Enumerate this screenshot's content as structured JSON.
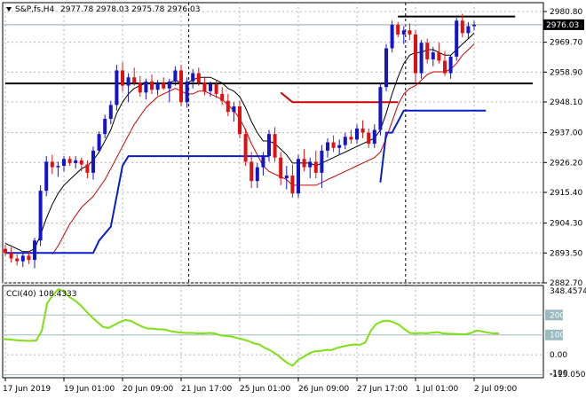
{
  "header": {
    "symbol": "S&P,fs,H4",
    "ohlc": "2977.78 2978.03 2975.78 2976.03"
  },
  "colors": {
    "up": "#1414c8",
    "down": "#e01010",
    "ma_fast": "#000000",
    "ma_slow": "#d00000",
    "stop_blue": "#0a1ec8",
    "stop_red": "#d00000",
    "cci": "#7fe016",
    "level": "#000000",
    "grid": "#b4b4b4",
    "current_price_label": "#000000",
    "cci_ref": "#9bbbc0"
  },
  "chart_data": [
    {
      "type": "candlestick",
      "title": "S&P,fs,H4",
      "x_labels": [
        "17 Jun 2019",
        "19 Jun 01:00",
        "20 Jun 09:00",
        "21 Jun 17:00",
        "25 Jun 01:00",
        "26 Jun 09:00",
        "27 Jun 17:00",
        "1 Jul 01:00",
        "2 Jul 09:00"
      ],
      "x_label_index": [
        0,
        10,
        20,
        30,
        40,
        50,
        60,
        70,
        80
      ],
      "y_ticks": [
        2980.8,
        2969.7,
        2958.9,
        2948.1,
        2937.0,
        2926.2,
        2915.4,
        2904.3,
        2893.5,
        2882.7
      ],
      "ylim": [
        2882.7,
        2984.0
      ],
      "current_price": 2976.03,
      "current_price_label": "2976.03",
      "levels": [
        {
          "price": 2954.8,
          "from": 0,
          "to": 90
        },
        {
          "price": 2979.0,
          "from": 67,
          "to": 87
        }
      ],
      "candles": [
        [
          2895.0,
          2896.5,
          2892.5,
          2893.5
        ],
        [
          2893.5,
          2895.5,
          2890.0,
          2891.5
        ],
        [
          2891.5,
          2893.0,
          2889.0,
          2890.5
        ],
        [
          2890.5,
          2893.5,
          2888.5,
          2892.5
        ],
        [
          2892.5,
          2894.0,
          2889.5,
          2891.0
        ],
        [
          2891.0,
          2899.0,
          2888.0,
          2898.0
        ],
        [
          2898.0,
          2918.0,
          2896.0,
          2916.0
        ],
        [
          2916.0,
          2928.5,
          2914.0,
          2926.5
        ],
        [
          2926.5,
          2929.0,
          2922.0,
          2924.5
        ],
        [
          2924.5,
          2926.5,
          2921.0,
          2925.0
        ],
        [
          2925.0,
          2928.5,
          2923.0,
          2927.5
        ],
        [
          2927.5,
          2928.5,
          2925.0,
          2926.0
        ],
        [
          2926.0,
          2928.5,
          2924.0,
          2927.0
        ],
        [
          2927.0,
          2928.0,
          2923.0,
          2925.5
        ],
        [
          2925.5,
          2927.0,
          2920.5,
          2922.5
        ],
        [
          2922.5,
          2932.0,
          2920.0,
          2930.5
        ],
        [
          2930.5,
          2937.5,
          2929.5,
          2936.5
        ],
        [
          2936.5,
          2943.5,
          2935.0,
          2942.0
        ],
        [
          2942.0,
          2948.5,
          2940.0,
          2947.0
        ],
        [
          2947.0,
          2961.5,
          2945.0,
          2959.5
        ],
        [
          2959.5,
          2962.5,
          2952.0,
          2954.0
        ],
        [
          2954.0,
          2958.5,
          2948.0,
          2957.0
        ],
        [
          2957.0,
          2960.5,
          2954.0,
          2955.0
        ],
        [
          2955.0,
          2957.5,
          2950.0,
          2951.5
        ],
        [
          2951.5,
          2956.5,
          2949.0,
          2955.5
        ],
        [
          2955.5,
          2958.0,
          2951.0,
          2952.5
        ],
        [
          2952.5,
          2956.0,
          2950.5,
          2955.0
        ],
        [
          2955.0,
          2957.0,
          2952.5,
          2953.0
        ],
        [
          2953.0,
          2956.5,
          2948.0,
          2955.5
        ],
        [
          2955.5,
          2961.0,
          2954.0,
          2959.5
        ],
        [
          2959.5,
          2961.5,
          2946.5,
          2948.0
        ],
        [
          2948.0,
          2957.0,
          2946.0,
          2955.5
        ],
        [
          2955.5,
          2960.0,
          2953.0,
          2958.5
        ],
        [
          2958.5,
          2960.5,
          2954.0,
          2955.0
        ],
        [
          2955.0,
          2957.0,
          2950.5,
          2952.0
        ],
        [
          2952.0,
          2955.5,
          2950.0,
          2954.5
        ],
        [
          2954.5,
          2956.0,
          2949.5,
          2951.0
        ],
        [
          2951.0,
          2953.5,
          2947.0,
          2948.5
        ],
        [
          2948.5,
          2951.0,
          2943.0,
          2944.5
        ],
        [
          2944.5,
          2948.0,
          2941.0,
          2946.5
        ],
        [
          2946.5,
          2948.5,
          2935.0,
          2936.5
        ],
        [
          2936.5,
          2938.5,
          2925.0,
          2926.5
        ],
        [
          2926.5,
          2930.0,
          2917.0,
          2919.5
        ],
        [
          2919.5,
          2926.0,
          2917.0,
          2924.5
        ],
        [
          2924.5,
          2930.0,
          2921.5,
          2928.5
        ],
        [
          2928.5,
          2938.0,
          2926.5,
          2936.5
        ],
        [
          2936.5,
          2939.0,
          2926.5,
          2928.0
        ],
        [
          2928.0,
          2930.0,
          2918.0,
          2920.5
        ],
        [
          2920.5,
          2925.0,
          2916.5,
          2921.5
        ],
        [
          2921.5,
          2925.5,
          2913.5,
          2915.0
        ],
        [
          2915.0,
          2929.0,
          2913.5,
          2927.5
        ],
        [
          2927.5,
          2931.0,
          2923.0,
          2924.5
        ],
        [
          2924.5,
          2928.0,
          2920.5,
          2926.5
        ],
        [
          2926.5,
          2930.5,
          2920.5,
          2922.5
        ],
        [
          2922.5,
          2932.5,
          2917.0,
          2930.5
        ],
        [
          2930.5,
          2935.0,
          2928.0,
          2933.5
        ],
        [
          2933.5,
          2936.0,
          2930.0,
          2931.5
        ],
        [
          2931.5,
          2934.5,
          2929.0,
          2932.5
        ],
        [
          2932.5,
          2937.0,
          2931.0,
          2935.5
        ],
        [
          2935.5,
          2938.0,
          2933.0,
          2934.5
        ],
        [
          2934.5,
          2940.0,
          2933.0,
          2938.5
        ],
        [
          2938.5,
          2941.5,
          2935.0,
          2937.0
        ],
        [
          2937.0,
          2938.5,
          2931.5,
          2933.0
        ],
        [
          2933.0,
          2940.0,
          2931.5,
          2938.0
        ],
        [
          2938.0,
          2955.0,
          2936.0,
          2953.5
        ],
        [
          2953.5,
          2969.0,
          2952.0,
          2967.5
        ],
        [
          2967.5,
          2977.5,
          2966.0,
          2976.0
        ],
        [
          2976.0,
          2977.0,
          2971.5,
          2972.5
        ],
        [
          2972.5,
          2975.5,
          2969.0,
          2974.0
        ],
        [
          2974.0,
          2976.5,
          2970.5,
          2972.5
        ],
        [
          2972.5,
          2974.0,
          2955.0,
          2958.5
        ],
        [
          2958.5,
          2970.5,
          2956.5,
          2969.5
        ],
        [
          2969.5,
          2971.0,
          2962.0,
          2963.5
        ],
        [
          2963.5,
          2968.0,
          2961.0,
          2966.0
        ],
        [
          2966.0,
          2969.5,
          2962.0,
          2963.0
        ],
        [
          2963.0,
          2966.5,
          2957.5,
          2958.5
        ],
        [
          2958.5,
          2965.0,
          2956.5,
          2964.5
        ],
        [
          2964.5,
          2978.5,
          2963.0,
          2977.5
        ],
        [
          2977.5,
          2980.0,
          2971.5,
          2973.0
        ],
        [
          2973.0,
          2977.0,
          2971.0,
          2975.5
        ],
        [
          2975.5,
          2977.5,
          2974.0,
          2976.0
        ]
      ],
      "overlays": {
        "ma_fast": [
          2897,
          2896,
          2895,
          2894,
          2894,
          2895,
          2900,
          2906,
          2911,
          2915,
          2918,
          2920,
          2922,
          2924,
          2925,
          2927,
          2930,
          2934,
          2938,
          2944,
          2948,
          2951,
          2953,
          2954,
          2955,
          2955,
          2955,
          2955,
          2955,
          2956,
          2955,
          2955,
          2956,
          2957,
          2957,
          2957,
          2956,
          2955,
          2953,
          2952,
          2950,
          2946,
          2941,
          2937,
          2934,
          2934,
          2933,
          2931,
          2929,
          2926,
          2926,
          2926,
          2926,
          2925,
          2926,
          2927,
          2928,
          2929,
          2930,
          2931,
          2932,
          2933,
          2934,
          2935,
          2938,
          2944,
          2951,
          2957,
          2962,
          2965,
          2966,
          2966,
          2967,
          2967,
          2966,
          2965,
          2965,
          2967,
          2969,
          2971,
          2973
        ],
        "ma_slow": [
          null,
          null,
          null,
          null,
          null,
          null,
          null,
          null,
          2893,
          2896,
          2900,
          2904,
          2907,
          2910,
          2912,
          2914,
          2917,
          2920,
          2924,
          2928,
          2932,
          2936,
          2940,
          2943,
          2946,
          2948,
          2950,
          2951,
          2952,
          2953,
          2952,
          2951,
          2951,
          2952,
          2952,
          2951,
          2950,
          2949,
          2947,
          2945,
          2942,
          2938,
          2933,
          2929,
          2925,
          2923,
          2922,
          2921,
          2920,
          2918,
          2918,
          2918,
          2918,
          2918,
          2919,
          2920,
          2921,
          2922,
          2923,
          2924,
          2925,
          2926,
          2927,
          2928,
          2930,
          2935,
          2941,
          2947,
          2951,
          2953,
          2954,
          2956,
          2958,
          2959,
          2959,
          2959,
          2960,
          2962,
          2965,
          2967,
          2969
        ],
        "stop_blue": [
          [
            [
              0,
              2893.5
            ],
            [
              15,
              2893.5
            ],
            [
              16,
              2898.0
            ],
            [
              18,
              2903.0
            ],
            [
              20,
              2925.0
            ],
            [
              21,
              2928.5
            ],
            [
              45,
              2928.5
            ]
          ],
          [
            [
              64,
              2919.0
            ],
            [
              65,
              2937.0
            ],
            [
              66,
              2937.0
            ],
            [
              68,
              2945.0
            ],
            [
              82,
              2945.0
            ]
          ]
        ],
        "stop_red": [
          [
            [
              47,
              2951.5
            ],
            [
              49,
              2948.0
            ],
            [
              67,
              2948.0
            ]
          ]
        ]
      }
    },
    {
      "type": "line",
      "title": "CCI(40) 108.4333",
      "indicator": "CCI(40)",
      "last_value": "108.4333",
      "ylim": [
        -115.0508,
        348.4574
      ],
      "y_ticks": [
        "348.4574",
        "200",
        "100",
        "0.00",
        "-100",
        "-115.0508"
      ],
      "reference_levels": [
        200,
        100,
        -100
      ],
      "values": [
        80,
        78,
        75,
        72,
        71,
        70,
        72,
        120,
        260,
        300,
        330,
        318,
        290,
        272,
        248,
        218,
        190,
        165,
        140,
        135,
        150,
        165,
        175,
        170,
        155,
        142,
        132,
        132,
        128,
        128,
        120,
        115,
        112,
        110,
        110,
        108,
        108,
        110,
        108,
        98,
        95,
        92,
        85,
        78,
        70,
        58,
        52,
        35,
        22,
        5,
        -18,
        -40,
        -55,
        -25,
        -10,
        8,
        18,
        20,
        25,
        24,
        35,
        42,
        48,
        52,
        50,
        62,
        120,
        155,
        168,
        172,
        165,
        152,
        130,
        110,
        108,
        110,
        108,
        112,
        114,
        108,
        106,
        105,
        104,
        103,
        110,
        122,
        118,
        112,
        108,
        108
      ]
    }
  ]
}
